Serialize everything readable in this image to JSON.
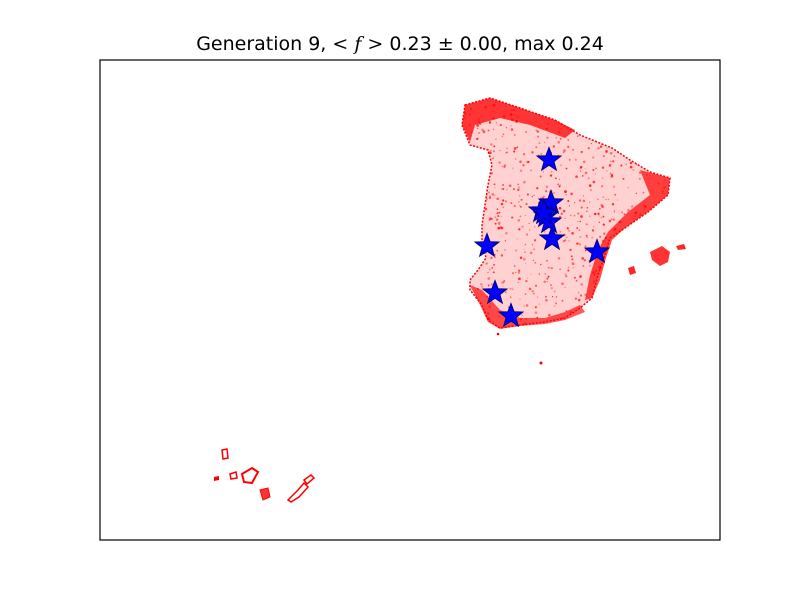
{
  "title": {
    "prefix": "Generation 9, ",
    "math": "< f >",
    "suffix": " 0.23 ± 0.00, max 0.24"
  },
  "map": {
    "region": "Spain",
    "points_color": "#ff0000",
    "marker_color": "#0000ff",
    "marker_edge_color": "#000080",
    "marker_icon": "star-icon",
    "markers_count": 11
  }
}
